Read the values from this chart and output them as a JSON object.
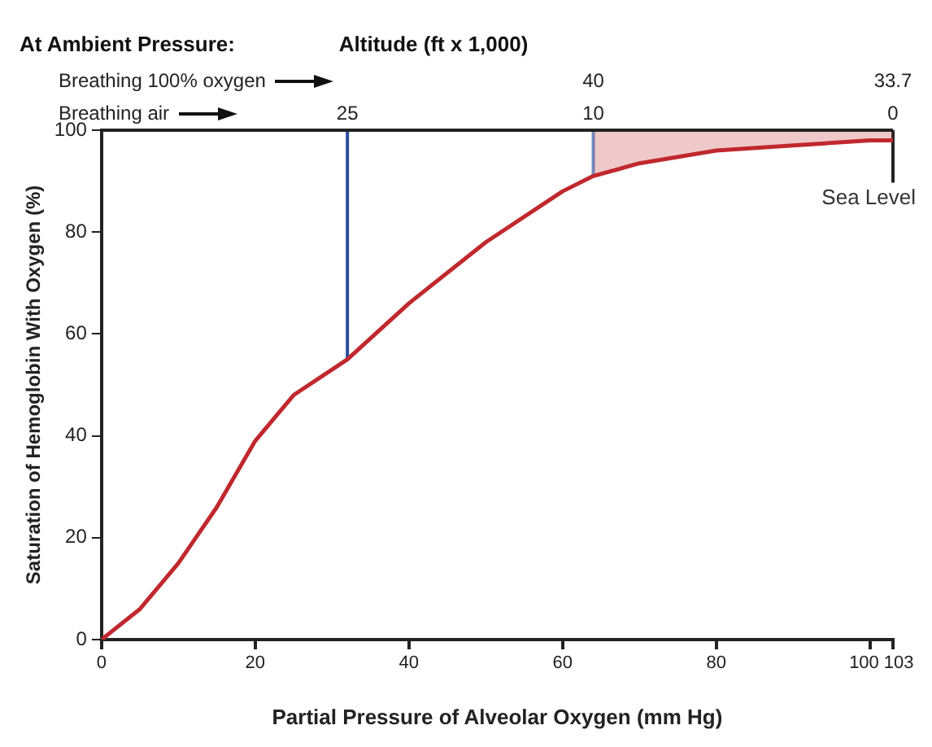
{
  "chart_data": {
    "type": "line",
    "annotations": [
      "At Ambient Pressure:",
      "Altitude (ft x 1,000)",
      "Breathing 100% oxygen",
      "Breathing air",
      "25",
      "10",
      "0",
      "40",
      "33.7"
    ],
    "xlabel": "Partial Pressure of Alveolar Oxygen (mm Hg)",
    "ylabel": "Saturation of Hemoglobin With Oxygen (%)",
    "xlim": [
      0,
      103
    ],
    "xticks": [
      0,
      20,
      40,
      60,
      80,
      100,
      103
    ],
    "ylim": [
      0,
      100
    ],
    "yticks": [
      0,
      20,
      40,
      60,
      80,
      100
    ],
    "series": [
      {
        "color": "#c0282d",
        "x": [
          0,
          5,
          10,
          15,
          20,
          25,
          32,
          40,
          50,
          60,
          64,
          70,
          80,
          90,
          100,
          103
        ],
        "values": [
          0,
          6,
          15,
          26,
          39,
          48,
          55,
          66,
          78,
          88,
          91,
          93.5,
          96,
          97,
          98,
          98
        ],
        "lower": [
          null,
          null,
          null,
          null,
          null,
          null,
          null,
          null,
          null,
          null,
          91,
          93.5,
          96,
          97,
          98,
          98
        ],
        "upper": [
          null,
          null,
          null,
          null,
          null,
          null,
          null,
          null,
          null,
          null,
          100,
          100,
          100,
          100,
          100,
          100
        ]
      }
    ],
    "ref_lines": [
      {
        "axis": "x",
        "value": 32,
        "color": "#2b4c9b"
      },
      {
        "axis": "x",
        "value": 64,
        "color": "#6f8fc8"
      },
      {
        "axis": "x",
        "value": 103,
        "label": "Sea Level",
        "color": "#222222"
      }
    ],
    "grid": false,
    "legend": false,
    "marker": "none"
  }
}
